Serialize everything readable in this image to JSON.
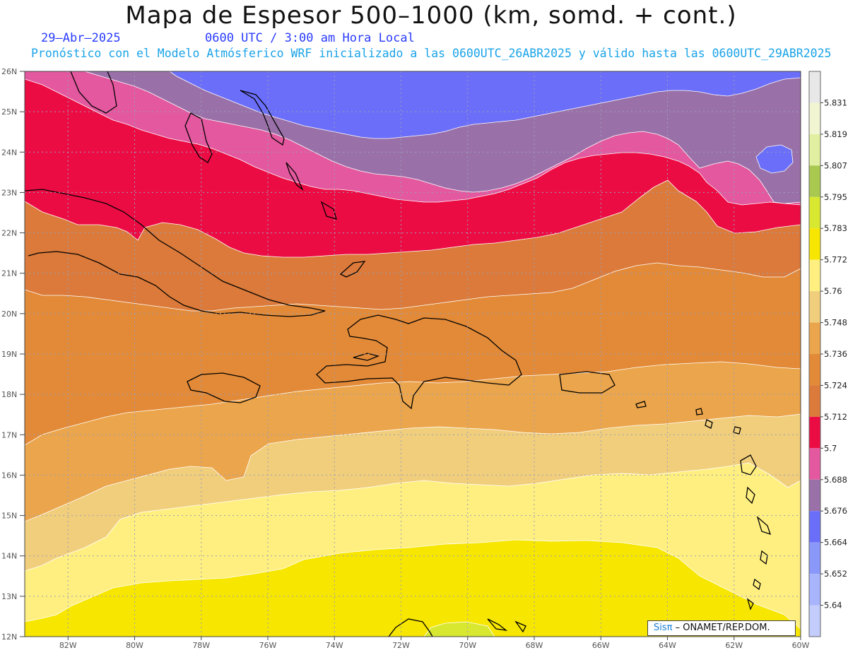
{
  "header": {
    "title": "Mapa de Espesor 500–1000 (km, somd. + cont.)",
    "valid_date": "29–Abr–2025",
    "valid_time": "0600 UTC / 3:00 am Hora Local",
    "forecast_line": "Pronóstico con el Modelo Atmósferico WRF inicializado a las 0600UTC_26ABR2025 y válido hasta las  0600UTC_29ABR2025"
  },
  "map": {
    "lat_labels": [
      "26N",
      "25N",
      "24N",
      "23N",
      "22N",
      "21N",
      "20N",
      "19N",
      "18N",
      "17N",
      "16N",
      "15N",
      "14N",
      "13N",
      "12N"
    ],
    "lon_labels": [
      "82W",
      "80W",
      "78W",
      "76W",
      "74W",
      "72W",
      "70W",
      "68W",
      "66W",
      "64W",
      "62W",
      "60W"
    ],
    "lat_range": [
      12,
      26
    ],
    "lon_range": [
      -83.3,
      -60.0
    ]
  },
  "colorbar": {
    "labels": [
      "5.831",
      "5.819",
      "5.807",
      "5.795",
      "5.783",
      "5.772",
      "5.76",
      "5.748",
      "5.736",
      "5.724",
      "5.712",
      "5.7",
      "5.688",
      "5.676",
      "5.664",
      "5.652",
      "5.64"
    ],
    "colors": [
      "#e8e8e8",
      "#f2f5d2",
      "#e0f0a0",
      "#a8c850",
      "#d8e830",
      "#f7e600",
      "#ffef80",
      "#f1ce7c",
      "#eba54c",
      "#e28a38",
      "#db7a3a",
      "#ec0c44",
      "#e3589e",
      "#9a70a8",
      "#6b6ef8",
      "#8a98fa",
      "#a8b4fc",
      "#c4ccfc"
    ]
  },
  "credit": {
    "brand": "Sisπ",
    "text": " – ONAMET/REP.DOM."
  }
}
